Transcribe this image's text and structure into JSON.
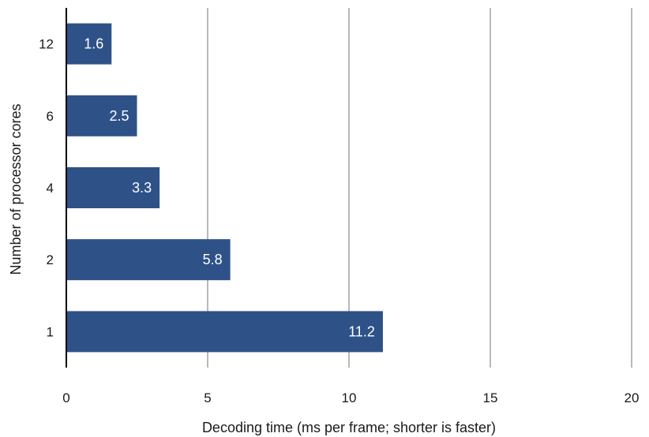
{
  "chart_data": {
    "type": "bar",
    "orientation": "horizontal",
    "categories": [
      "12",
      "6",
      "4",
      "2",
      "1"
    ],
    "values": [
      1.6,
      2.5,
      3.3,
      5.8,
      11.2
    ],
    "value_labels": [
      "1.6",
      "2.5",
      "3.3",
      "5.8",
      "11.2"
    ],
    "xlabel": "Decoding time (ms per frame; shorter is faster)",
    "ylabel": "Number of processor cores",
    "xlim": [
      0,
      20
    ],
    "xticks": [
      0,
      5,
      10,
      15,
      20
    ],
    "xtick_labels": [
      "0",
      "5",
      "10",
      "15",
      "20"
    ],
    "grid": "vertical",
    "colors": {
      "bar": "#2e5288",
      "grid": "#b9b9b9",
      "axis": "#000000"
    }
  }
}
